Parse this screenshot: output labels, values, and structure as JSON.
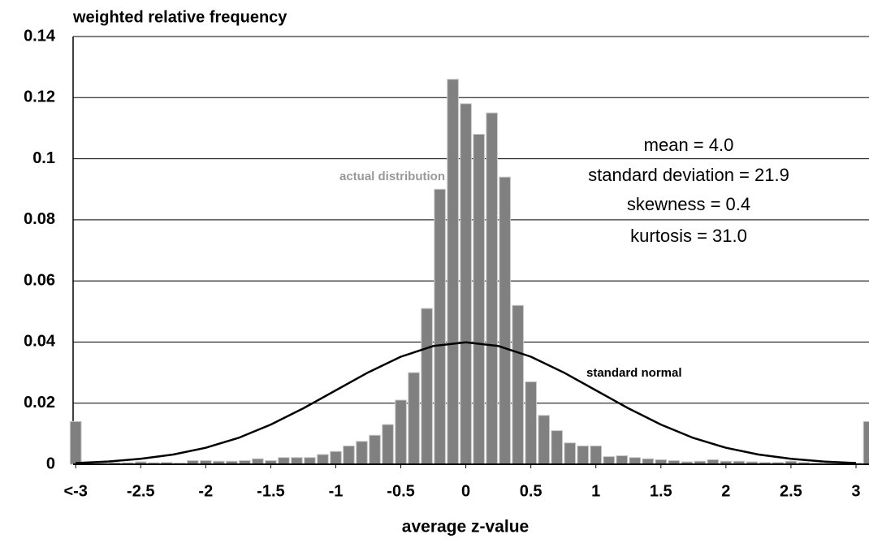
{
  "chart_data": {
    "type": "bar",
    "title": "weighted relative frequency",
    "x_label": "average z-value",
    "xlim": [
      -3.02,
      3.1
    ],
    "ylim": [
      0,
      0.14
    ],
    "xticks": [
      {
        "value": -3,
        "label": "<-3"
      },
      -2.5,
      -2,
      -1.5,
      -1,
      -0.5,
      0,
      0.5,
      1,
      1.5,
      2,
      2.5,
      3
    ],
    "yticks": [
      0,
      0.02,
      0.04,
      0.06,
      0.08,
      0.1,
      0.12,
      0.14
    ],
    "grid": true,
    "series": [
      {
        "name": "actual distribution",
        "type": "bar",
        "color": "#808080",
        "x": [
          -3.0,
          -2.9,
          -2.8,
          -2.7,
          -2.6,
          -2.5,
          -2.4,
          -2.3,
          -2.2,
          -2.1,
          -2.0,
          -1.9,
          -1.8,
          -1.7,
          -1.6,
          -1.5,
          -1.4,
          -1.3,
          -1.2,
          -1.1,
          -1.0,
          -0.9,
          -0.8,
          -0.7,
          -0.6,
          -0.5,
          -0.4,
          -0.3,
          -0.2,
          -0.1,
          0.0,
          0.1,
          0.2,
          0.3,
          0.4,
          0.5,
          0.6,
          0.7,
          0.8,
          0.9,
          1.0,
          1.1,
          1.2,
          1.3,
          1.4,
          1.5,
          1.6,
          1.7,
          1.8,
          1.9,
          2.0,
          2.1,
          2.2,
          2.3,
          2.4,
          2.5,
          2.6,
          2.7,
          2.8,
          2.9,
          3.0,
          3.1
        ],
        "values": [
          0.014,
          0.0004,
          0.0004,
          0.0005,
          0.0005,
          0.0008,
          0.0005,
          0.0006,
          0.0004,
          0.0012,
          0.0012,
          0.001,
          0.001,
          0.0012,
          0.0018,
          0.0012,
          0.0022,
          0.0022,
          0.0022,
          0.0032,
          0.0042,
          0.006,
          0.0075,
          0.0095,
          0.013,
          0.021,
          0.03,
          0.051,
          0.09,
          0.126,
          0.118,
          0.108,
          0.115,
          0.094,
          0.052,
          0.027,
          0.016,
          0.011,
          0.007,
          0.006,
          0.006,
          0.0025,
          0.0028,
          0.0022,
          0.0018,
          0.0015,
          0.0012,
          0.0008,
          0.001,
          0.0015,
          0.001,
          0.001,
          0.0008,
          0.0006,
          0.0006,
          0.001,
          0.0006,
          0.0004,
          0.0004,
          0.0004,
          0.0004,
          0.014
        ]
      },
      {
        "name": "standard normal",
        "type": "line",
        "color": "#000000",
        "x": [
          -3,
          -2.75,
          -2.5,
          -2.25,
          -2,
          -1.75,
          -1.5,
          -1.25,
          -1,
          -0.75,
          -0.5,
          -0.25,
          0,
          0.25,
          0.5,
          0.75,
          1,
          1.25,
          1.5,
          1.75,
          2,
          2.25,
          2.5,
          2.75,
          3
        ],
        "values": [
          0.0004,
          0.0009,
          0.0018,
          0.0032,
          0.0054,
          0.0086,
          0.013,
          0.0183,
          0.0242,
          0.0301,
          0.0352,
          0.0387,
          0.0399,
          0.0387,
          0.0352,
          0.0301,
          0.0242,
          0.0183,
          0.013,
          0.0086,
          0.0054,
          0.0032,
          0.0018,
          0.0009,
          0.0004
        ]
      }
    ],
    "annotations": [
      "mean = 4.0",
      "standard deviation = 21.9",
      "skewness = 0.4",
      "kurtosis = 31.0"
    ]
  }
}
